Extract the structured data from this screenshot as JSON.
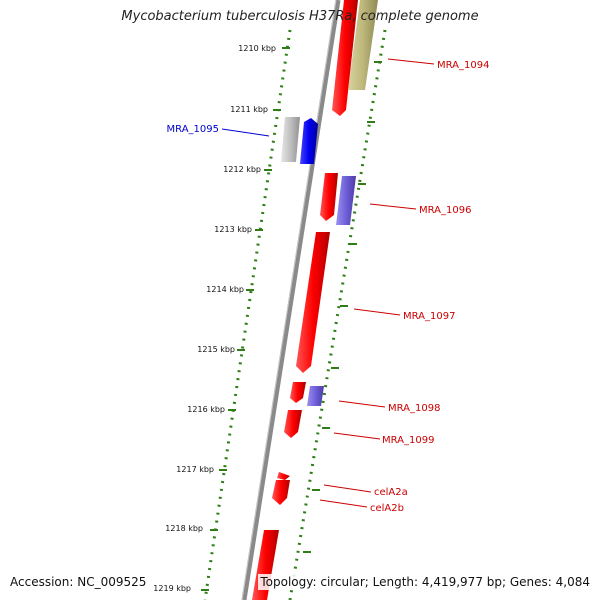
{
  "title": "Mycobacterium tuberculosis H37Ra, complete genome",
  "footer": {
    "accession": "Accession: NC_009525",
    "summary": "Topology: circular; Length: 4,419,977 bp; Genes: 4,084"
  },
  "colors": {
    "forward_gene": "#e00000",
    "reverse_gene_blue": "#0000dd",
    "pseudo_grey": "#b0b0b0",
    "rna_olive": "#b5b068",
    "purple_gene": "#7766cc",
    "backbone": "#808080",
    "tick_green": "#2e7d16",
    "label_red": "#cc0000",
    "label_blue": "#0000cc"
  },
  "scale_labels": [
    "1210 kbp",
    "1211 kbp",
    "1212 kbp",
    "1213 kbp",
    "1214 kbp",
    "1215 kbp",
    "1216 kbp",
    "1217 kbp",
    "1218 kbp",
    "1219 kbp"
  ],
  "gene_labels": [
    {
      "text": "MRA_1094",
      "color": "#cc0000"
    },
    {
      "text": "MRA_1095",
      "color": "#0000cc"
    },
    {
      "text": "MRA_1096",
      "color": "#cc0000"
    },
    {
      "text": "MRA_1097",
      "color": "#cc0000"
    },
    {
      "text": "MRA_1098",
      "color": "#cc0000"
    },
    {
      "text": "MRA_1099",
      "color": "#cc0000"
    },
    {
      "text": "celA2a",
      "color": "#cc0000"
    },
    {
      "text": "celA2b",
      "color": "#cc0000"
    }
  ]
}
